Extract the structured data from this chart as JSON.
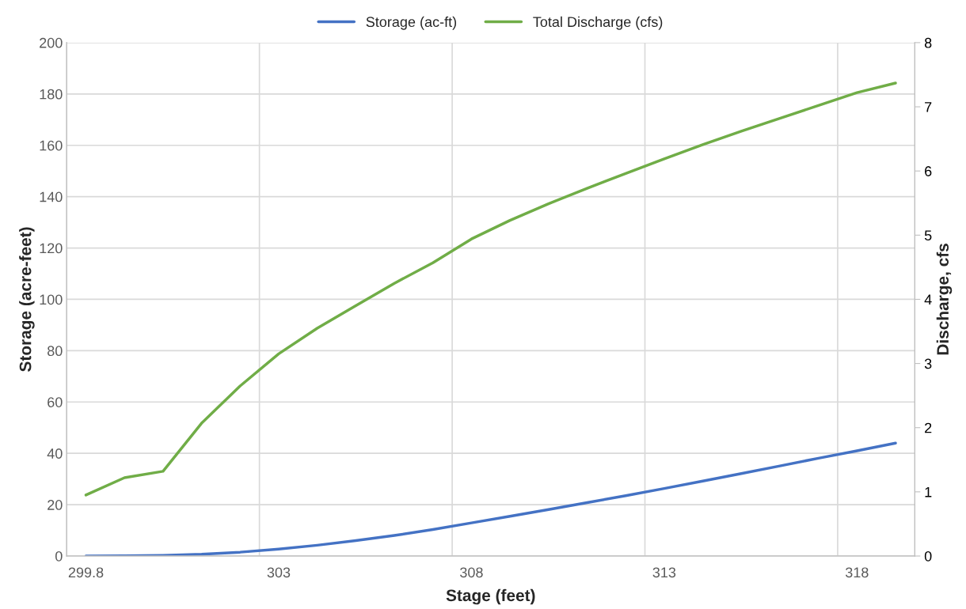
{
  "chart_data": {
    "type": "line",
    "xlabel": "Stage (feet)",
    "ylabel": "Storage (acre-feet)",
    "y2label": "Discharge, cfs",
    "categories": [
      "299.8",
      null,
      null,
      null,
      null,
      "303",
      null,
      null,
      null,
      null,
      "308",
      null,
      null,
      null,
      null,
      "313",
      null,
      null,
      null,
      null,
      "318",
      null
    ],
    "series": [
      {
        "name": "Storage (ac-ft)",
        "color": "#4472c4",
        "values": [
          0,
          0.05,
          0.25,
          0.7,
          1.5,
          2.7,
          4.2,
          6.0,
          8.0,
          10.3,
          12.9,
          15.5,
          18.1,
          20.8,
          23.5,
          26.3,
          29.2,
          32.1,
          35.1,
          38.1,
          41.0,
          44.0
        ]
      },
      {
        "name": "Total Discharge (cfs)",
        "color": "#70ad47",
        "axis": "y2",
        "values": [
          0.95,
          1.22,
          1.32,
          2.07,
          2.65,
          3.15,
          3.55,
          3.9,
          4.25,
          4.57,
          4.94,
          5.23,
          5.49,
          5.73,
          5.96,
          6.19,
          6.41,
          6.62,
          6.82,
          7.02,
          7.22,
          7.37
        ]
      }
    ],
    "ylim": [
      0,
      200
    ],
    "yticks": [
      0,
      20,
      40,
      60,
      80,
      100,
      120,
      140,
      160,
      180,
      200
    ],
    "y2lim": [
      0,
      8
    ],
    "y2ticks": [
      0,
      1,
      2,
      3,
      4,
      5,
      6,
      7,
      8
    ],
    "grid": true,
    "legend": "top",
    "marker": "none",
    "line_style": "solid"
  }
}
